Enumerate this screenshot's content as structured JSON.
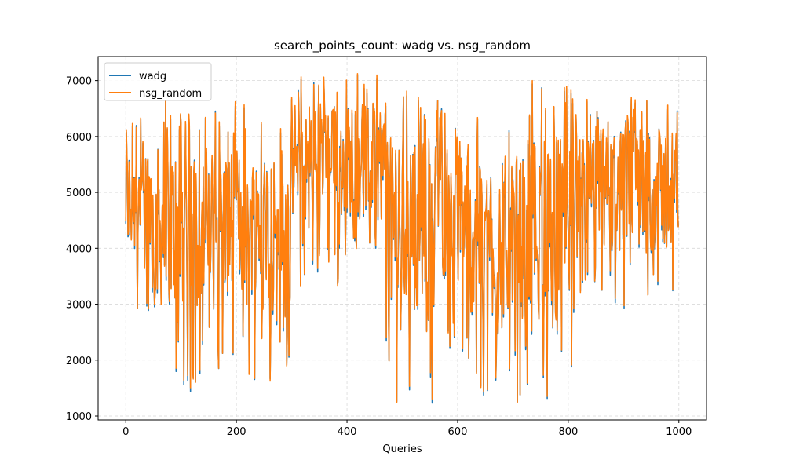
{
  "chart_data": {
    "type": "line",
    "title": "search_points_count: wadg vs. nsg_random",
    "xlabel": "Queries",
    "ylabel": "",
    "xlim": [
      -50,
      1050
    ],
    "ylim": [
      930,
      7430
    ],
    "xticks": [
      0,
      200,
      400,
      600,
      800,
      1000
    ],
    "yticks": [
      1000,
      2000,
      3000,
      4000,
      5000,
      6000,
      7000
    ],
    "grid": true,
    "grid_style": "dashed",
    "legend_position": "upper-left",
    "n_points": 1000,
    "series": [
      {
        "name": "wadg",
        "color": "#1f77b4"
      },
      {
        "name": "nsg_random",
        "color": "#ff7f0e"
      }
    ],
    "segments": [
      {
        "from": 0,
        "to": 50,
        "low": 2600,
        "high": 6400
      },
      {
        "from": 50,
        "to": 160,
        "low": 1400,
        "high": 6650
      },
      {
        "from": 160,
        "to": 300,
        "low": 1650,
        "high": 6550
      },
      {
        "from": 300,
        "to": 470,
        "low": 3300,
        "high": 7120
      },
      {
        "from": 470,
        "to": 560,
        "low": 1230,
        "high": 6950
      },
      {
        "from": 560,
        "to": 620,
        "low": 2000,
        "high": 6700
      },
      {
        "from": 620,
        "to": 730,
        "low": 1250,
        "high": 6450
      },
      {
        "from": 730,
        "to": 830,
        "low": 1200,
        "high": 6950
      },
      {
        "from": 830,
        "to": 1000,
        "low": 2650,
        "high": 6720
      }
    ]
  }
}
